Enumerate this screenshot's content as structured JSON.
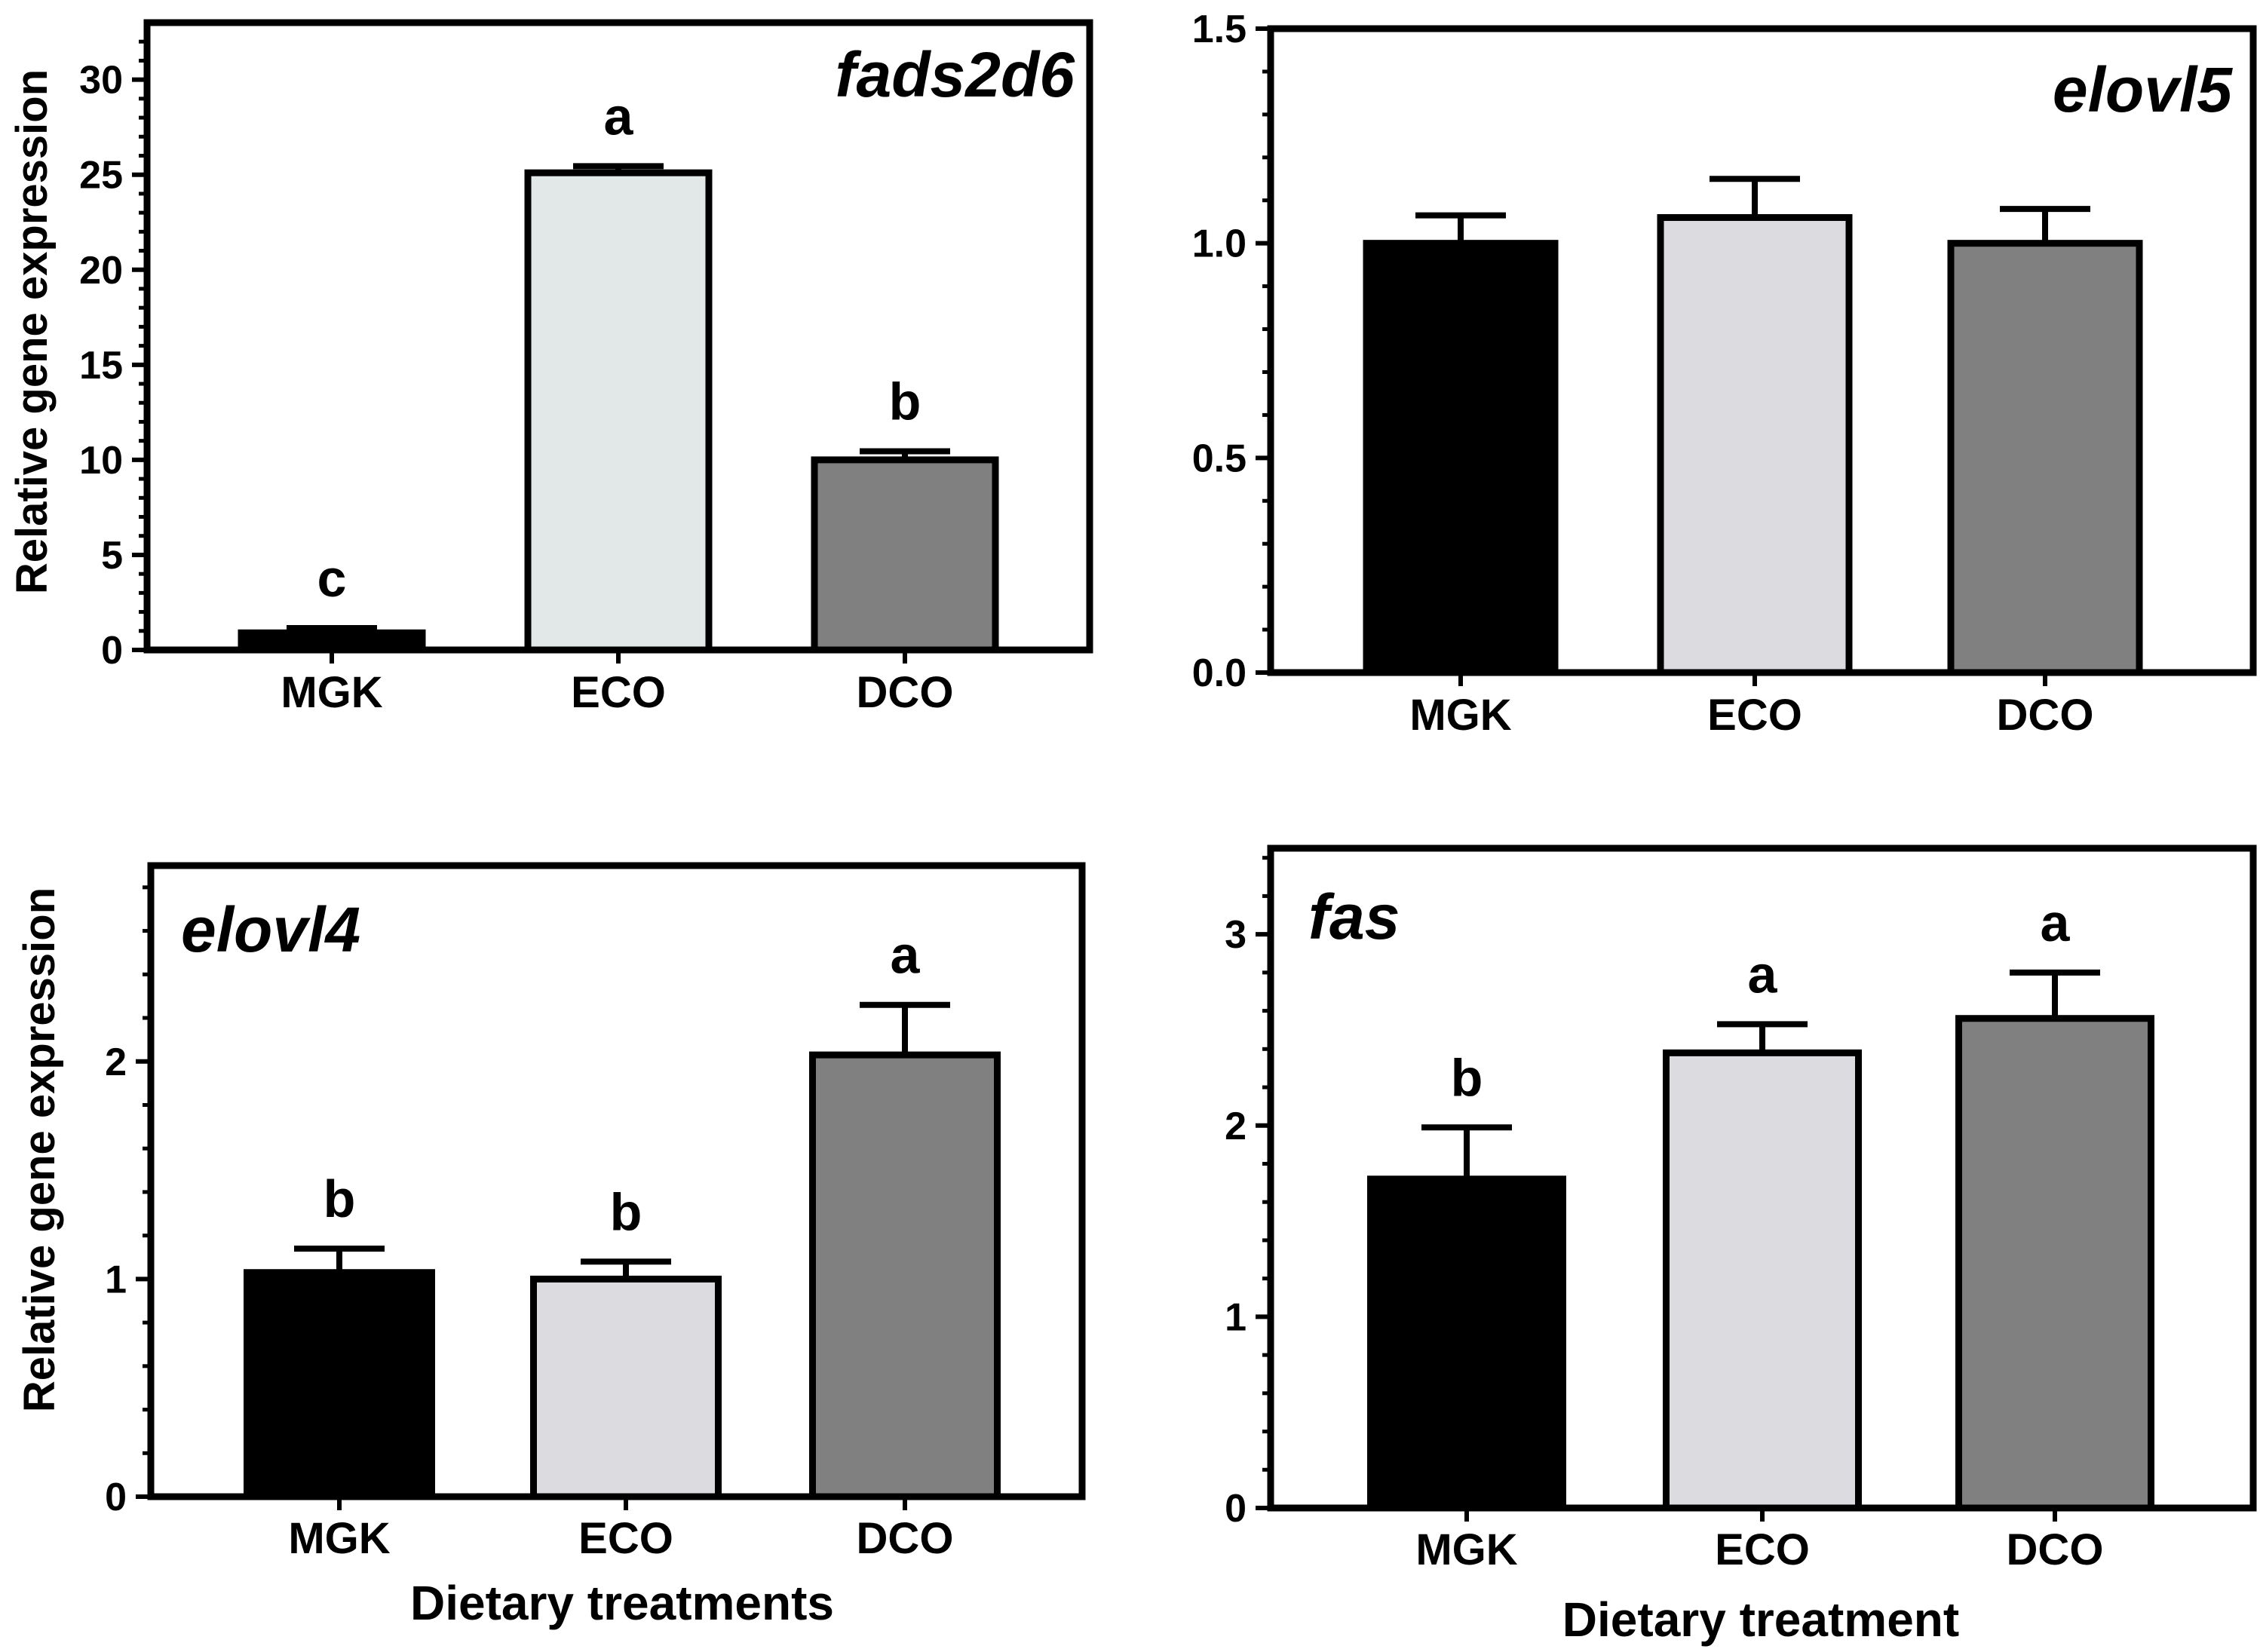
{
  "chart_data": [
    {
      "type": "bar",
      "panel": "top-left",
      "title": "fads2d6",
      "title_position": "top-right",
      "ylabel": "Relative gene expression",
      "xlabel": "",
      "ylim": [
        0,
        33
      ],
      "yticks": [
        0,
        5,
        10,
        15,
        20,
        25,
        30
      ],
      "ytick_labels": [
        "0",
        "5",
        "10",
        "15",
        "20",
        "25",
        "30"
      ],
      "minor_ticks": 4,
      "categories": [
        "MGK",
        "ECO",
        "DCO"
      ],
      "values": [
        0.9,
        25.1,
        10.0
      ],
      "errors": [
        0.25,
        0.35,
        0.45
      ],
      "significance": [
        "c",
        "a",
        "b"
      ],
      "colors": [
        "#000000",
        "#e2e8e8",
        "#808080"
      ]
    },
    {
      "type": "bar",
      "panel": "top-right",
      "title": "elovl5",
      "title_position": "top-right",
      "ylabel": "",
      "xlabel": "",
      "ylim": [
        0,
        1.5
      ],
      "yticks": [
        0,
        0.5,
        1.0,
        1.5
      ],
      "ytick_labels": [
        "0.0",
        "0.5",
        "1.0",
        "1.5"
      ],
      "minor_ticks": 4,
      "categories": [
        "MGK",
        "ECO",
        "DCO"
      ],
      "values": [
        1.0,
        1.06,
        1.0
      ],
      "errors": [
        0.065,
        0.09,
        0.08
      ],
      "significance": [
        "",
        "",
        ""
      ],
      "colors": [
        "#000000",
        "#dcdce0",
        "#808080"
      ]
    },
    {
      "type": "bar",
      "panel": "bottom-left",
      "title": "elovl4",
      "title_position": "top-left",
      "ylabel": "Relative gene expression",
      "xlabel": "Dietary treatments",
      "ylim": [
        0,
        2.9
      ],
      "yticks": [
        0,
        1,
        2
      ],
      "ytick_labels": [
        "0",
        "1",
        "2"
      ],
      "minor_ticks": 4,
      "categories": [
        "MGK",
        "ECO",
        "DCO"
      ],
      "values": [
        1.03,
        1.0,
        2.03
      ],
      "errors": [
        0.11,
        0.08,
        0.23
      ],
      "significance": [
        "b",
        "b",
        "a"
      ],
      "colors": [
        "#000000",
        "#dcdce0",
        "#808080"
      ]
    },
    {
      "type": "bar",
      "panel": "bottom-right",
      "title": "fas",
      "title_position": "top-left",
      "ylabel": "",
      "xlabel": "Dietary treatment",
      "ylim": [
        0,
        3.45
      ],
      "yticks": [
        0,
        1,
        2,
        3
      ],
      "ytick_labels": [
        "0",
        "1",
        "2",
        "3"
      ],
      "minor_ticks": 4,
      "categories": [
        "MGK",
        "ECO",
        "DCO"
      ],
      "values": [
        1.72,
        2.38,
        2.56
      ],
      "errors": [
        0.27,
        0.15,
        0.24
      ],
      "significance": [
        "b",
        "a",
        "a"
      ],
      "colors": [
        "#000000",
        "#dcdce0",
        "#808080"
      ]
    }
  ]
}
